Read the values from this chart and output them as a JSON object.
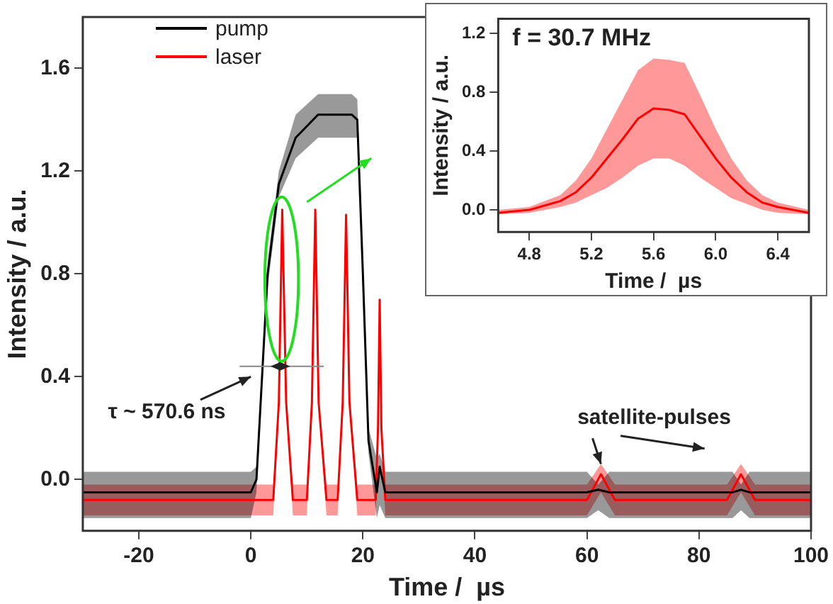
{
  "chart_data": [
    {
      "type": "line",
      "xlabel": "Time /  µs",
      "ylabel": "Intensity / a.u.",
      "xlim": [
        -30,
        100
      ],
      "xticks": [
        -20,
        0,
        20,
        40,
        60,
        80,
        100
      ],
      "ylim": [
        -0.2,
        1.8
      ],
      "yticks": [
        {
          "value": 0,
          "label": "0.0"
        },
        0.4,
        0.8,
        1.2,
        1.6
      ],
      "grid": false,
      "legend": "top left",
      "annotations": [
        "τ ~ 570.6 ns",
        "satellite-pulses"
      ],
      "series": [
        {
          "name": "pump",
          "color": "#000000",
          "x": [
            -30,
            0,
            1,
            3,
            5,
            8,
            12,
            18,
            19,
            20,
            21,
            22.5,
            23,
            24,
            60,
            62,
            64,
            86,
            87.5,
            89,
            100
          ],
          "values": [
            -0.05,
            -0.05,
            0,
            0.8,
            1.15,
            1.33,
            1.42,
            1.42,
            1.4,
            0.8,
            0.15,
            -0.05,
            0.05,
            -0.05,
            -0.05,
            -0.04,
            -0.05,
            -0.05,
            -0.04,
            -0.05,
            -0.05
          ],
          "lower": [
            -0.15,
            -0.15,
            -0.05,
            0.75,
            1.1,
            1.25,
            1.33,
            1.33,
            1.33,
            0.75,
            0.1,
            -0.15,
            -0.1,
            -0.15,
            -0.15,
            -0.12,
            -0.15,
            -0.15,
            -0.12,
            -0.15,
            -0.15
          ],
          "upper": [
            0.03,
            0.03,
            0.05,
            0.85,
            1.2,
            1.42,
            1.5,
            1.5,
            1.48,
            0.85,
            0.2,
            0.08,
            0.1,
            0.03,
            0.03,
            -0.02,
            0.03,
            0.03,
            -0.02,
            0.03,
            0.03
          ]
        },
        {
          "name": "laser",
          "color": "#ff0000",
          "x": [
            -30,
            4,
            5,
            5.6,
            6.3,
            7.5,
            10,
            10.9,
            11.5,
            12.1,
            13.5,
            15.5,
            16.4,
            17,
            17.6,
            19,
            22.3,
            22.7,
            23,
            23.3,
            24,
            60,
            62.5,
            65,
            85,
            87.5,
            90,
            100
          ],
          "values": [
            -0.08,
            -0.08,
            0.3,
            1.05,
            0.3,
            -0.08,
            -0.08,
            0.3,
            1.05,
            0.3,
            -0.08,
            -0.08,
            0.3,
            1.03,
            0.3,
            -0.08,
            -0.08,
            0.2,
            0.7,
            0.2,
            -0.08,
            -0.08,
            0.02,
            -0.08,
            -0.08,
            0.02,
            -0.08,
            -0.08
          ],
          "lower": [
            -0.14,
            -0.14,
            0.3,
            1.05,
            0.3,
            -0.14,
            -0.14,
            0.3,
            1.05,
            0.3,
            -0.14,
            -0.14,
            0.3,
            1.03,
            0.3,
            -0.14,
            -0.14,
            0.2,
            0.7,
            0.2,
            -0.14,
            -0.14,
            -0.05,
            -0.14,
            -0.14,
            -0.05,
            -0.14,
            -0.14
          ],
          "upper": [
            -0.02,
            -0.02,
            0.3,
            1.05,
            0.3,
            -0.02,
            -0.02,
            0.3,
            1.05,
            0.3,
            -0.02,
            -0.02,
            0.3,
            1.03,
            0.3,
            -0.02,
            -0.02,
            0.2,
            0.7,
            0.2,
            -0.02,
            -0.02,
            0.06,
            -0.02,
            -0.02,
            0.06,
            -0.02,
            -0.02
          ]
        }
      ]
    },
    {
      "type": "line",
      "xlabel": "Time /  µs",
      "ylabel": "Intensity / a.u.",
      "xlim": [
        4.6,
        6.6
      ],
      "xticks": [
        4.8,
        5.2,
        5.6,
        {
          "value": 6,
          "label": "6.0"
        },
        6.4
      ],
      "ylim": [
        -0.15,
        1.3
      ],
      "yticks": [
        {
          "value": 0,
          "label": "0.0"
        },
        0.4,
        0.8,
        1.2
      ],
      "grid": false,
      "annotations": [
        "f = 30.7 MHz"
      ],
      "series": [
        {
          "color": "#ff0000",
          "x": [
            4.6,
            4.8,
            5.0,
            5.1,
            5.2,
            5.3,
            5.4,
            5.5,
            5.6,
            5.7,
            5.8,
            5.9,
            6.0,
            6.1,
            6.2,
            6.3,
            6.4,
            6.6
          ],
          "values": [
            -0.02,
            0,
            0.06,
            0.12,
            0.22,
            0.35,
            0.48,
            0.62,
            0.69,
            0.68,
            0.65,
            0.5,
            0.35,
            0.22,
            0.12,
            0.05,
            0.02,
            -0.02
          ],
          "lower": [
            -0.03,
            -0.02,
            0.02,
            0.05,
            0.1,
            0.15,
            0.22,
            0.3,
            0.35,
            0.35,
            0.3,
            0.22,
            0.15,
            0.08,
            0.04,
            0,
            -0.02,
            -0.03
          ],
          "upper": [
            0,
            0.02,
            0.1,
            0.2,
            0.35,
            0.55,
            0.75,
            0.95,
            1.03,
            1.02,
            1.0,
            0.78,
            0.55,
            0.35,
            0.2,
            0.1,
            0.05,
            0
          ]
        }
      ]
    }
  ]
}
